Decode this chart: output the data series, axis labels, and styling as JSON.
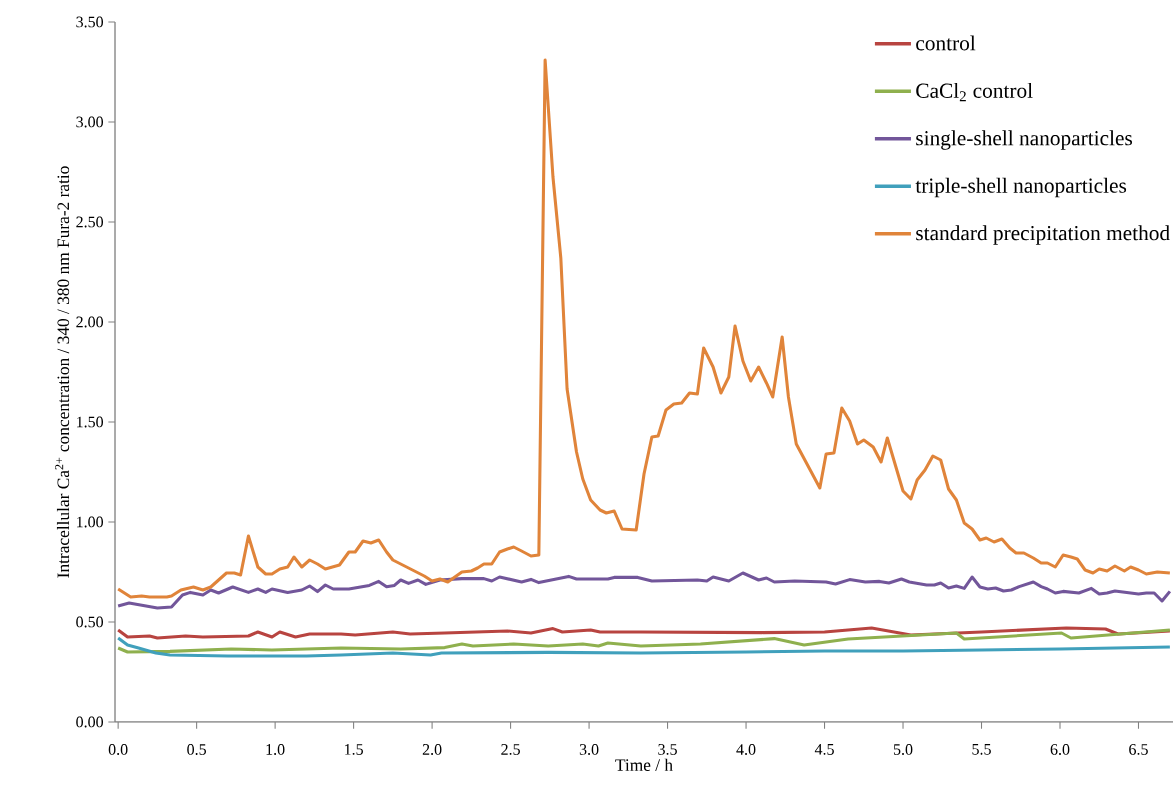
{
  "chart_data": {
    "type": "line",
    "xlabel": "Time / h",
    "ylabel": "Intracellular Ca$^{2+}$ concentration  / 340 / 380 nm Fura-2 ratio",
    "xlim": [
      -0.02,
      6.72
    ],
    "ylim": [
      0,
      3.5
    ],
    "xticks": [
      {
        "value": 0,
        "label": "0.0"
      },
      {
        "value": 0.5,
        "label": "0.5"
      },
      {
        "value": 1,
        "label": "1.0"
      },
      {
        "value": 1.5,
        "label": "1.5"
      },
      {
        "value": 2,
        "label": "2.0"
      },
      {
        "value": 2.5,
        "label": "2.5"
      },
      {
        "value": 3,
        "label": "3.0"
      },
      {
        "value": 3.5,
        "label": "3.5"
      },
      {
        "value": 4,
        "label": "4.0"
      },
      {
        "value": 4.5,
        "label": "4.5"
      },
      {
        "value": 5,
        "label": "5.0"
      },
      {
        "value": 5.5,
        "label": "5.5"
      },
      {
        "value": 6,
        "label": "6.0"
      },
      {
        "value": 6.5,
        "label": "6.5"
      }
    ],
    "yticks": [
      {
        "value": 0,
        "label": "0.00"
      },
      {
        "value": 0.5,
        "label": "0.50"
      },
      {
        "value": 1,
        "label": "1.00"
      },
      {
        "value": 1.5,
        "label": "1.50"
      },
      {
        "value": 2,
        "label": "2.00"
      },
      {
        "value": 2.5,
        "label": "2.50"
      },
      {
        "value": 3,
        "label": "3.00"
      },
      {
        "value": 3.5,
        "label": "3.50"
      }
    ],
    "grid": false,
    "legend": "top right",
    "marker": "none",
    "line_style": "solid",
    "series": [
      {
        "name": "control",
        "color": "#b84440",
        "x": [
          0,
          0.06,
          0.2,
          0.25,
          0.43,
          0.54,
          0.83,
          0.89,
          0.98,
          1.03,
          1.13,
          1.22,
          1.42,
          1.51,
          1.75,
          1.86,
          2.08,
          2.48,
          2.63,
          2.77,
          2.83,
          3.01,
          3.07,
          3.33,
          4.1,
          4.5,
          4.8,
          5.05,
          5.5,
          6.04,
          6.29,
          6.37,
          6.7
        ],
        "values": [
          0.46,
          0.425,
          0.43,
          0.42,
          0.43,
          0.425,
          0.43,
          0.45,
          0.425,
          0.45,
          0.425,
          0.44,
          0.44,
          0.435,
          0.45,
          0.44,
          0.445,
          0.455,
          0.445,
          0.467,
          0.45,
          0.46,
          0.45,
          0.45,
          0.447,
          0.45,
          0.47,
          0.435,
          0.45,
          0.47,
          0.465,
          0.44,
          0.455
        ]
      },
      {
        "name": "CaCl$_{2}$ control",
        "color": "#8fb04e",
        "x": [
          0,
          0.06,
          0.33,
          0.72,
          0.98,
          1.42,
          1.8,
          2.08,
          2.19,
          2.26,
          2.52,
          2.74,
          2.96,
          3.06,
          3.12,
          3.33,
          3.71,
          4.18,
          4.37,
          4.65,
          5.34,
          5.39,
          6.01,
          6.07,
          6.7
        ],
        "values": [
          0.37,
          0.35,
          0.353,
          0.365,
          0.36,
          0.37,
          0.365,
          0.372,
          0.39,
          0.38,
          0.39,
          0.38,
          0.39,
          0.38,
          0.395,
          0.38,
          0.39,
          0.417,
          0.385,
          0.415,
          0.445,
          0.415,
          0.445,
          0.42,
          0.46
        ]
      },
      {
        "name": "single-shell nanoparticles",
        "color": "#72569a",
        "x": [
          0,
          0.07,
          0.25,
          0.34,
          0.41,
          0.46,
          0.54,
          0.59,
          0.64,
          0.73,
          0.83,
          0.89,
          0.94,
          0.98,
          1.08,
          1.17,
          1.22,
          1.27,
          1.32,
          1.37,
          1.47,
          1.6,
          1.66,
          1.71,
          1.76,
          1.8,
          1.85,
          1.91,
          1.96,
          2.05,
          2.19,
          2.33,
          2.38,
          2.43,
          2.57,
          2.63,
          2.68,
          2.87,
          2.92,
          3.12,
          3.16,
          3.31,
          3.4,
          3.69,
          3.75,
          3.79,
          3.89,
          3.98,
          4.08,
          4.13,
          4.18,
          4.31,
          4.51,
          4.57,
          4.66,
          4.76,
          4.85,
          4.91,
          4.99,
          5.04,
          5.15,
          5.2,
          5.24,
          5.29,
          5.34,
          5.39,
          5.44,
          5.49,
          5.54,
          5.59,
          5.64,
          5.69,
          5.74,
          5.83,
          5.88,
          5.92,
          5.97,
          6.02,
          6.12,
          6.2,
          6.25,
          6.3,
          6.35,
          6.5,
          6.55,
          6.6,
          6.65,
          6.7
        ],
        "values": [
          0.58,
          0.595,
          0.57,
          0.575,
          0.635,
          0.648,
          0.635,
          0.66,
          0.645,
          0.675,
          0.648,
          0.665,
          0.648,
          0.665,
          0.648,
          0.66,
          0.68,
          0.652,
          0.685,
          0.665,
          0.665,
          0.683,
          0.703,
          0.676,
          0.683,
          0.71,
          0.693,
          0.71,
          0.688,
          0.71,
          0.717,
          0.717,
          0.705,
          0.725,
          0.7,
          0.713,
          0.697,
          0.728,
          0.715,
          0.715,
          0.723,
          0.723,
          0.705,
          0.71,
          0.705,
          0.725,
          0.705,
          0.745,
          0.71,
          0.72,
          0.7,
          0.705,
          0.7,
          0.69,
          0.712,
          0.7,
          0.703,
          0.695,
          0.715,
          0.7,
          0.685,
          0.685,
          0.695,
          0.67,
          0.68,
          0.668,
          0.725,
          0.675,
          0.665,
          0.67,
          0.655,
          0.66,
          0.677,
          0.7,
          0.677,
          0.665,
          0.645,
          0.653,
          0.645,
          0.668,
          0.64,
          0.645,
          0.655,
          0.64,
          0.645,
          0.645,
          0.605,
          0.653
        ]
      },
      {
        "name": "triple-shell nanoparticles",
        "color": "#40a0bc",
        "x": [
          0,
          0.06,
          0.13,
          0.24,
          0.33,
          0.7,
          1.2,
          1.42,
          1.75,
          1.99,
          2.06,
          2.74,
          3.33,
          4.0,
          4.5,
          5.0,
          5.5,
          6.0,
          6.7
        ],
        "values": [
          0.42,
          0.385,
          0.37,
          0.345,
          0.335,
          0.33,
          0.33,
          0.335,
          0.345,
          0.335,
          0.345,
          0.348,
          0.345,
          0.35,
          0.355,
          0.355,
          0.36,
          0.365,
          0.375
        ]
      },
      {
        "name": "standard precipitation method",
        "color": "#e0843a",
        "x": [
          0,
          0.08,
          0.15,
          0.2,
          0.31,
          0.34,
          0.4,
          0.48,
          0.54,
          0.59,
          0.69,
          0.74,
          0.78,
          0.83,
          0.89,
          0.94,
          0.98,
          1.03,
          1.08,
          1.12,
          1.17,
          1.22,
          1.27,
          1.32,
          1.41,
          1.47,
          1.51,
          1.56,
          1.61,
          1.66,
          1.71,
          1.75,
          1.9,
          1.95,
          2.0,
          2.05,
          2.1,
          2.19,
          2.25,
          2.29,
          2.33,
          2.38,
          2.43,
          2.48,
          2.52,
          2.57,
          2.63,
          2.68,
          2.72,
          2.77,
          2.82,
          2.86,
          2.92,
          2.96,
          3.01,
          3.07,
          3.11,
          3.16,
          3.21,
          3.3,
          3.35,
          3.4,
          3.44,
          3.49,
          3.54,
          3.59,
          3.64,
          3.69,
          3.73,
          3.79,
          3.84,
          3.89,
          3.93,
          3.98,
          4.03,
          4.08,
          4.13,
          4.17,
          4.23,
          4.27,
          4.32,
          4.47,
          4.51,
          4.56,
          4.61,
          4.66,
          4.71,
          4.75,
          4.81,
          4.86,
          4.9,
          5.0,
          5.05,
          5.09,
          5.14,
          5.19,
          5.24,
          5.29,
          5.34,
          5.39,
          5.44,
          5.49,
          5.53,
          5.58,
          5.63,
          5.68,
          5.72,
          5.77,
          5.83,
          5.88,
          5.92,
          5.97,
          6.02,
          6.07,
          6.11,
          6.16,
          6.21,
          6.25,
          6.3,
          6.35,
          6.41,
          6.45,
          6.5,
          6.55,
          6.62,
          6.7
        ],
        "values": [
          0.665,
          0.625,
          0.63,
          0.625,
          0.625,
          0.63,
          0.66,
          0.675,
          0.66,
          0.675,
          0.745,
          0.745,
          0.735,
          0.93,
          0.775,
          0.74,
          0.74,
          0.765,
          0.775,
          0.825,
          0.775,
          0.81,
          0.79,
          0.765,
          0.785,
          0.85,
          0.85,
          0.905,
          0.895,
          0.91,
          0.85,
          0.81,
          0.75,
          0.73,
          0.705,
          0.715,
          0.7,
          0.75,
          0.755,
          0.77,
          0.79,
          0.79,
          0.85,
          0.865,
          0.875,
          0.855,
          0.83,
          0.835,
          3.31,
          2.725,
          2.32,
          1.665,
          1.35,
          1.215,
          1.11,
          1.06,
          1.045,
          1.055,
          0.965,
          0.96,
          1.24,
          1.425,
          1.43,
          1.56,
          1.59,
          1.595,
          1.645,
          1.64,
          1.87,
          1.775,
          1.645,
          1.725,
          1.98,
          1.805,
          1.705,
          1.775,
          1.695,
          1.625,
          1.925,
          1.625,
          1.39,
          1.17,
          1.34,
          1.345,
          1.57,
          1.505,
          1.39,
          1.41,
          1.375,
          1.3,
          1.42,
          1.155,
          1.115,
          1.21,
          1.26,
          1.33,
          1.31,
          1.165,
          1.11,
          0.995,
          0.965,
          0.91,
          0.92,
          0.9,
          0.915,
          0.87,
          0.845,
          0.845,
          0.82,
          0.795,
          0.795,
          0.775,
          0.835,
          0.825,
          0.815,
          0.76,
          0.745,
          0.765,
          0.755,
          0.78,
          0.755,
          0.775,
          0.76,
          0.74,
          0.75,
          0.745
        ]
      }
    ]
  }
}
